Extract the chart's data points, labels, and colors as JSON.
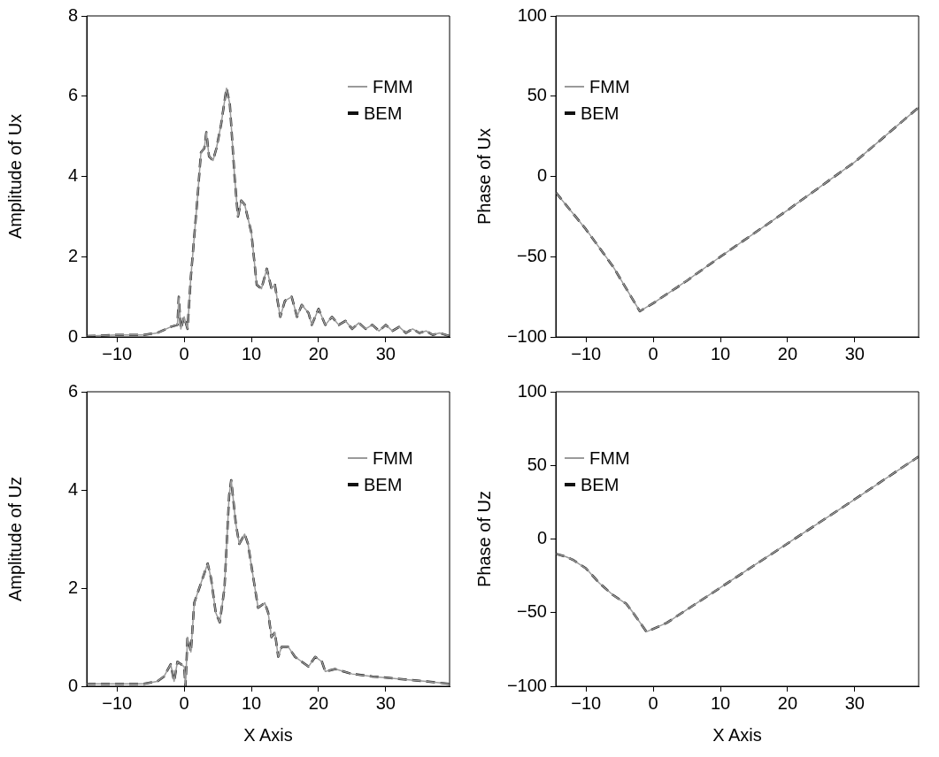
{
  "chart_data": [
    {
      "type": "line",
      "ylabel": "Amplitude of Ux",
      "legend": "top right",
      "xlim": [
        -14.5,
        39.5
      ],
      "ylim": [
        0,
        8
      ],
      "xticks": [
        -10,
        0,
        10,
        20,
        30
      ],
      "yticks": [
        0,
        2,
        4,
        6,
        8
      ],
      "x": [
        -14.5,
        -10,
        -6,
        -4,
        -2,
        -1,
        -0.8,
        -0.5,
        0,
        0.5,
        1,
        2,
        2.5,
        3,
        3.3,
        3.7,
        4.3,
        4.8,
        5.5,
        6.3,
        6.8,
        7.5,
        8,
        8.5,
        9,
        10,
        10.8,
        11.5,
        12.3,
        13,
        13.5,
        14.3,
        15,
        16,
        16.8,
        17.5,
        18.5,
        19,
        20,
        21,
        22,
        23,
        24,
        25,
        26,
        27,
        28,
        29,
        30,
        31,
        32,
        33,
        34,
        35,
        36,
        37,
        38,
        39.5
      ],
      "series": [
        {
          "name": "FMM",
          "color": "#9a9a9a",
          "line_style": "solid",
          "values": [
            0.02,
            0.05,
            0.05,
            0.1,
            0.25,
            0.3,
            1.0,
            0.2,
            0.5,
            0.2,
            1.5,
            3.5,
            4.6,
            4.7,
            5.1,
            4.5,
            4.4,
            4.7,
            5.3,
            6.2,
            5.8,
            4.0,
            3.0,
            3.4,
            3.3,
            2.6,
            1.3,
            1.2,
            1.7,
            1.2,
            1.3,
            0.5,
            0.9,
            1.0,
            0.5,
            0.8,
            0.6,
            0.3,
            0.7,
            0.3,
            0.5,
            0.3,
            0.4,
            0.2,
            0.35,
            0.2,
            0.3,
            0.15,
            0.3,
            0.15,
            0.25,
            0.1,
            0.2,
            0.1,
            0.15,
            0.05,
            0.1,
            0.02
          ]
        },
        {
          "name": "BEM",
          "color": "#111111",
          "line_style": "dashed",
          "values": [
            0.02,
            0.05,
            0.05,
            0.1,
            0.25,
            0.3,
            1.0,
            0.2,
            0.5,
            0.2,
            1.5,
            3.5,
            4.6,
            4.7,
            5.1,
            4.5,
            4.4,
            4.7,
            5.3,
            6.2,
            5.8,
            4.0,
            3.0,
            3.4,
            3.3,
            2.6,
            1.3,
            1.2,
            1.7,
            1.2,
            1.3,
            0.5,
            0.9,
            1.0,
            0.5,
            0.8,
            0.6,
            0.3,
            0.7,
            0.3,
            0.5,
            0.3,
            0.4,
            0.2,
            0.35,
            0.2,
            0.3,
            0.15,
            0.3,
            0.15,
            0.25,
            0.1,
            0.2,
            0.1,
            0.15,
            0.05,
            0.1,
            0.02
          ]
        }
      ]
    },
    {
      "type": "line",
      "ylabel": "Phase of Ux",
      "legend": "top left",
      "xlim": [
        -14.5,
        39.5
      ],
      "ylim": [
        -100,
        100
      ],
      "xticks": [
        -10,
        0,
        10,
        20,
        30
      ],
      "yticks": [
        -100,
        -50,
        0,
        50,
        100
      ],
      "x": [
        -14.5,
        -10,
        -6,
        -2,
        0,
        5,
        10,
        20,
        30,
        39.5
      ],
      "series": [
        {
          "name": "FMM",
          "color": "#9a9a9a",
          "line_style": "solid",
          "values": [
            -10,
            -33,
            -56,
            -84,
            -79,
            -65,
            -50,
            -21,
            9,
            43
          ]
        },
        {
          "name": "BEM",
          "color": "#111111",
          "line_style": "dashed",
          "values": [
            -10,
            -33,
            -56,
            -84,
            -79,
            -65,
            -50,
            -21,
            9,
            43
          ]
        }
      ]
    },
    {
      "type": "line",
      "xlabel": "X Axis",
      "ylabel": "Amplitude of Uz",
      "legend": "top right",
      "xlim": [
        -14.5,
        39.5
      ],
      "ylim": [
        0,
        6
      ],
      "xticks": [
        -10,
        0,
        10,
        20,
        30
      ],
      "yticks": [
        0,
        2,
        4,
        6
      ],
      "x": [
        -14.5,
        -10,
        -6,
        -4,
        -3,
        -2,
        -1.5,
        -1,
        0,
        0.2,
        0.5,
        1,
        1.5,
        2,
        3,
        3.5,
        4,
        4.7,
        5.3,
        6,
        6.7,
        7,
        7.7,
        8.2,
        9,
        9.5,
        10.3,
        11,
        12,
        12.5,
        13,
        13.5,
        14,
        14.5,
        15.5,
        16.5,
        17.5,
        18.5,
        19.5,
        20.5,
        21,
        22.5,
        25,
        28,
        32,
        36,
        39.5
      ],
      "series": [
        {
          "name": "FMM",
          "color": "#9a9a9a",
          "line_style": "solid",
          "values": [
            0.05,
            0.05,
            0.05,
            0.1,
            0.2,
            0.45,
            0.1,
            0.5,
            0.4,
            0,
            1.0,
            0.7,
            1.7,
            1.9,
            2.3,
            2.5,
            2.2,
            1.5,
            1.3,
            2.0,
            3.9,
            4.2,
            3.3,
            2.9,
            3.1,
            2.9,
            2.2,
            1.6,
            1.7,
            1.5,
            1.0,
            1.1,
            0.6,
            0.8,
            0.8,
            0.6,
            0.5,
            0.4,
            0.6,
            0.5,
            0.3,
            0.35,
            0.25,
            0.2,
            0.15,
            0.1,
            0.05
          ]
        },
        {
          "name": "BEM",
          "color": "#111111",
          "line_style": "dashed",
          "values": [
            0.05,
            0.05,
            0.05,
            0.1,
            0.2,
            0.45,
            0.1,
            0.5,
            0.4,
            0,
            1.0,
            0.7,
            1.7,
            1.9,
            2.3,
            2.5,
            2.2,
            1.5,
            1.3,
            2.0,
            3.9,
            4.2,
            3.3,
            2.9,
            3.1,
            2.9,
            2.2,
            1.6,
            1.7,
            1.5,
            1.0,
            1.1,
            0.6,
            0.8,
            0.8,
            0.6,
            0.5,
            0.4,
            0.6,
            0.5,
            0.3,
            0.35,
            0.25,
            0.2,
            0.15,
            0.1,
            0.05
          ]
        }
      ]
    },
    {
      "type": "line",
      "xlabel": "X Axis",
      "ylabel": "Phase of Uz",
      "legend": "top left",
      "xlim": [
        -14.5,
        39.5
      ],
      "ylim": [
        -100,
        100
      ],
      "xticks": [
        -10,
        0,
        10,
        20,
        30
      ],
      "yticks": [
        -100,
        -50,
        0,
        50,
        100
      ],
      "x": [
        -14.5,
        -13,
        -12,
        -10,
        -8,
        -6,
        -4,
        -3,
        -1,
        2,
        5,
        10,
        20,
        30,
        39.5
      ],
      "series": [
        {
          "name": "FMM",
          "color": "#9a9a9a",
          "line_style": "solid",
          "values": [
            -10,
            -12,
            -14,
            -20,
            -30,
            -38,
            -44,
            -50,
            -63,
            -57,
            -48,
            -33,
            -3,
            27,
            56
          ]
        },
        {
          "name": "BEM",
          "color": "#111111",
          "line_style": "dashed",
          "values": [
            -10,
            -12,
            -14,
            -20,
            -30,
            -38,
            -44,
            -50,
            -63,
            -57,
            -48,
            -33,
            -3,
            27,
            56
          ]
        }
      ]
    }
  ]
}
